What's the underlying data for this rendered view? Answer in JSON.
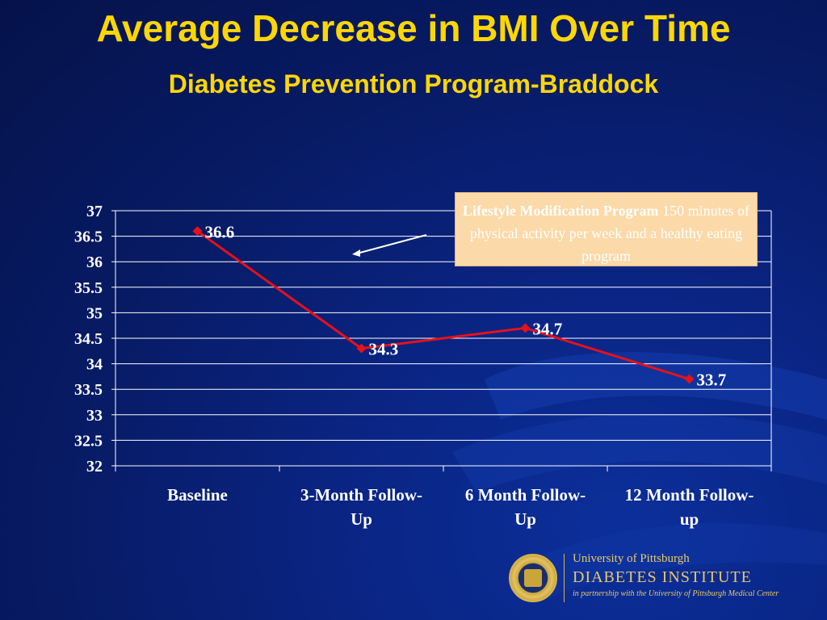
{
  "slide": {
    "title": "Average Decrease in BMI Over Time",
    "subtitle": "Diabetes Prevention Program-Braddock"
  },
  "callout": {
    "bold_text": "Lifestyle Modification Program",
    "text": " 150 minutes of physical activity per week and a healthy eating program"
  },
  "logo": {
    "line1": "University of Pittsburgh",
    "line2": "DIABETES INSTITUTE",
    "line3": "in partnership with the University of Pittsburgh Medical Center"
  },
  "colors": {
    "title": "#ffd700",
    "series_line": "#e8101a",
    "callout_bg": "#fcd9a8"
  },
  "chart_data": {
    "type": "line",
    "title": "",
    "xlabel": "",
    "ylabel": "",
    "categories": [
      "Baseline",
      "3-Month Follow-Up",
      "6 Month Follow-Up",
      "12 Month Follow-up"
    ],
    "category_lines": [
      [
        "Baseline"
      ],
      [
        "3-Month Follow-",
        "Up"
      ],
      [
        "6 Month Follow-",
        "Up"
      ],
      [
        "12 Month Follow-",
        "up"
      ]
    ],
    "series": [
      {
        "values": [
          36.6,
          34.3,
          34.7,
          33.7
        ]
      }
    ],
    "data_labels": [
      "36.6",
      "34.3",
      "34.7",
      "33.7"
    ],
    "ylim": [
      32,
      37
    ],
    "y_ticks": [
      "32",
      "32.5",
      "33",
      "33.5",
      "34",
      "34.5",
      "35",
      "35.5",
      "36",
      "36.5",
      "37"
    ],
    "grid": true,
    "legend": "none"
  }
}
